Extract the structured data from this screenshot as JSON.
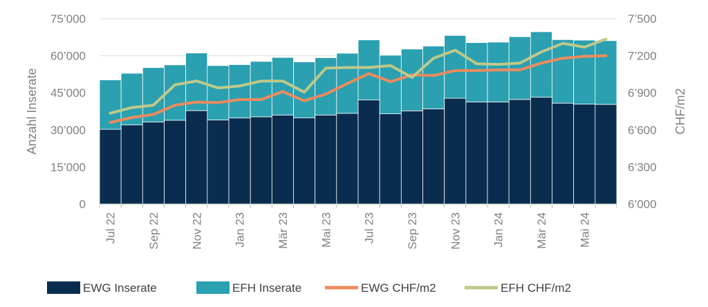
{
  "chart_data": {
    "type": "bar",
    "stacked": true,
    "x": [
      "Jul 22",
      "Aug 22",
      "Sep 22",
      "Okt 22",
      "Nov 22",
      "Dez 22",
      "Jan 23",
      "Feb 23",
      "Mär 23",
      "Apr 23",
      "Mai 23",
      "Jun 23",
      "Jul 23",
      "Aug 23",
      "Sep 23",
      "Okt 23",
      "Nov 23",
      "Dez 23",
      "Jan 24",
      "Feb 24",
      "Mär 24",
      "Apr 24",
      "Mai 24",
      "Jun 24"
    ],
    "tick_labels": [
      "Jul 22",
      "Sep 22",
      "Nov 22",
      "Jan 23",
      "Mär 23",
      "Mai 23",
      "Jul 23",
      "Sep 23",
      "Nov 23",
      "Jan 24",
      "Mär 24",
      "Mai 24"
    ],
    "ylabel_left": "Anzahl Inserate",
    "ylabel_right": "CHF/m2",
    "ylim_left": [
      0,
      75000
    ],
    "ylim_right": [
      6000,
      7500
    ],
    "yticks_left": [
      "0",
      "15’000",
      "30’000",
      "45’000",
      "60’000",
      "75’000"
    ],
    "yticks_right": [
      "6’000",
      "6’300",
      "6’600",
      "6’900",
      "7’200",
      "7’500"
    ],
    "grid": "horizontal",
    "legend_position": "bottom",
    "series": [
      {
        "name": "EWG Inserate",
        "kind": "bar",
        "axis": "left",
        "color": "#0a2d4f",
        "values": [
          30200,
          32000,
          33200,
          33900,
          37800,
          34000,
          34800,
          35300,
          36000,
          34900,
          36000,
          36700,
          42100,
          36500,
          37700,
          38500,
          42800,
          41300,
          41300,
          42300,
          43200,
          40800,
          40400,
          40300
        ]
      },
      {
        "name": "EFH Inserate",
        "kind": "bar",
        "axis": "left",
        "color": "#2aa0b0",
        "values": [
          20000,
          20900,
          22000,
          22400,
          23300,
          22000,
          21600,
          22400,
          23300,
          22600,
          23200,
          24300,
          24300,
          23700,
          25000,
          25400,
          25400,
          24000,
          24200,
          25400,
          26500,
          25700,
          25900,
          25800
        ]
      },
      {
        "name": "EWG CHF/m2",
        "kind": "line",
        "axis": "right",
        "color": "#ec8b5e",
        "values": [
          6660,
          6700,
          6725,
          6800,
          6825,
          6820,
          6845,
          6845,
          6910,
          6835,
          6890,
          6975,
          7055,
          6990,
          7045,
          7040,
          7080,
          7080,
          7085,
          7085,
          7140,
          7180,
          7195,
          7200
        ]
      },
      {
        "name": "EFH CHF/m2",
        "kind": "line",
        "axis": "right",
        "color": "#bfc98a",
        "values": [
          6735,
          6780,
          6800,
          6965,
          6995,
          6940,
          6955,
          6995,
          6995,
          6905,
          7100,
          7105,
          7105,
          7120,
          7025,
          7180,
          7245,
          7135,
          7130,
          7140,
          7230,
          7300,
          7270,
          7335
        ]
      }
    ]
  }
}
